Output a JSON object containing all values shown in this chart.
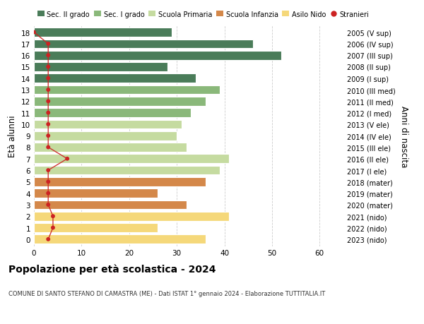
{
  "ages": [
    18,
    17,
    16,
    15,
    14,
    13,
    12,
    11,
    10,
    9,
    8,
    7,
    6,
    5,
    4,
    3,
    2,
    1,
    0
  ],
  "bar_values": [
    29,
    46,
    52,
    28,
    34,
    39,
    36,
    33,
    31,
    30,
    32,
    41,
    39,
    36,
    26,
    32,
    41,
    26,
    36
  ],
  "bar_colors": [
    "#4a7c59",
    "#4a7c59",
    "#4a7c59",
    "#4a7c59",
    "#4a7c59",
    "#8ab87a",
    "#8ab87a",
    "#8ab87a",
    "#c5dba0",
    "#c5dba0",
    "#c5dba0",
    "#c5dba0",
    "#c5dba0",
    "#d4884a",
    "#d4884a",
    "#d4884a",
    "#f5d87a",
    "#f5d87a",
    "#f5d87a"
  ],
  "stranieri_values": [
    0,
    3,
    3,
    3,
    3,
    3,
    3,
    3,
    3,
    3,
    3,
    7,
    3,
    3,
    3,
    3,
    4,
    4,
    3
  ],
  "right_labels": [
    "2005 (V sup)",
    "2006 (IV sup)",
    "2007 (III sup)",
    "2008 (II sup)",
    "2009 (I sup)",
    "2010 (III med)",
    "2011 (II med)",
    "2012 (I med)",
    "2013 (V ele)",
    "2014 (IV ele)",
    "2015 (III ele)",
    "2016 (II ele)",
    "2017 (I ele)",
    "2018 (mater)",
    "2019 (mater)",
    "2020 (mater)",
    "2021 (nido)",
    "2022 (nido)",
    "2023 (nido)"
  ],
  "legend_labels": [
    "Sec. II grado",
    "Sec. I grado",
    "Scuola Primaria",
    "Scuola Infanzia",
    "Asilo Nido",
    "Stranieri"
  ],
  "legend_colors": [
    "#4a7c59",
    "#8ab87a",
    "#c5dba0",
    "#d4884a",
    "#f5d87a",
    "#cc2222"
  ],
  "ylabel_left": "Età alunni",
  "ylabel_right": "Anni di nascita",
  "title": "Popolazione per età scolastica - 2024",
  "subtitle": "COMUNE DI SANTO STEFANO DI CAMASTRA (ME) - Dati ISTAT 1° gennaio 2024 - Elaborazione TUTTITALIA.IT",
  "xlim": [
    0,
    65
  ],
  "xticks": [
    0,
    10,
    20,
    30,
    40,
    50,
    60
  ],
  "bg_color": "#ffffff",
  "grid_color": "#cccccc",
  "bar_height": 0.78
}
